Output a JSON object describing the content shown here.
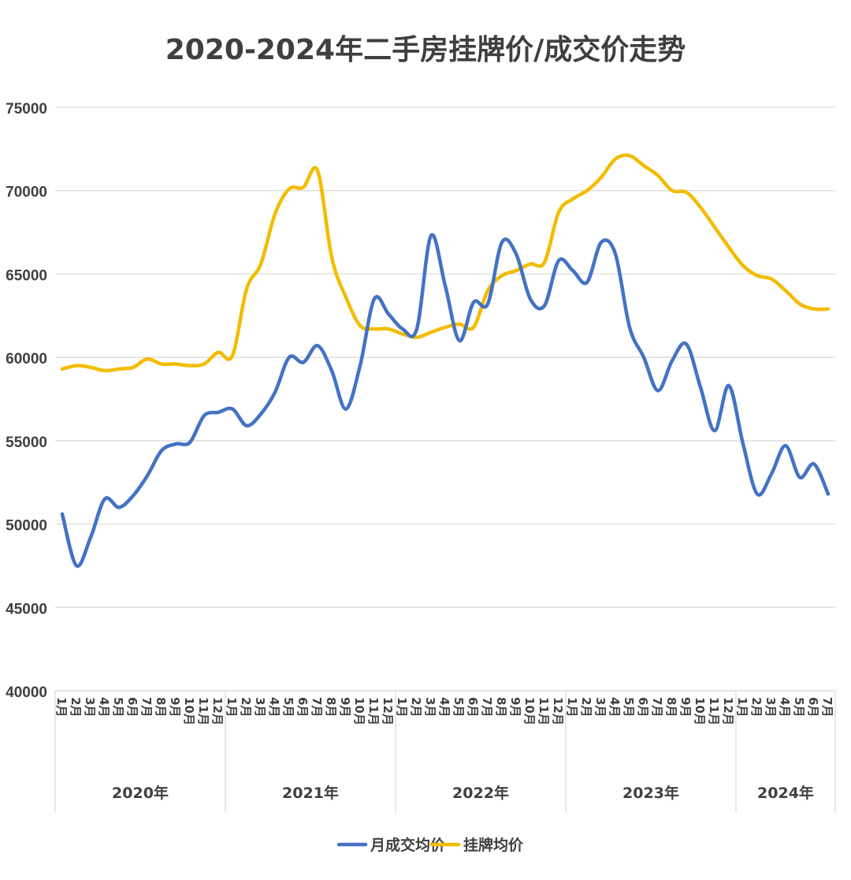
{
  "chart_data": {
    "type": "line",
    "title": "2020-2024年二手房挂牌价/成交价走势",
    "ylim": [
      40000,
      75000
    ],
    "yticks": [
      40000,
      45000,
      50000,
      55000,
      60000,
      65000,
      70000,
      75000
    ],
    "grid": true,
    "legend_position": "bottom",
    "groups": [
      {
        "year": "2020年",
        "months": [
          "1月",
          "2月",
          "3月",
          "4月",
          "5月",
          "6月",
          "7月",
          "8月",
          "9月",
          "10月",
          "11月",
          "12月"
        ]
      },
      {
        "year": "2021年",
        "months": [
          "1月",
          "2月",
          "3月",
          "4月",
          "5月",
          "6月",
          "7月",
          "8月",
          "9月",
          "10月",
          "11月",
          "12月"
        ]
      },
      {
        "year": "2022年",
        "months": [
          "1月",
          "2月",
          "3月",
          "4月",
          "5月",
          "6月",
          "7月",
          "8月",
          "9月",
          "10月",
          "11月",
          "12月"
        ]
      },
      {
        "year": "2023年",
        "months": [
          "1月",
          "2月",
          "3月",
          "4月",
          "5月",
          "6月",
          "7月",
          "8月",
          "9月",
          "10月",
          "11月",
          "12月"
        ]
      },
      {
        "year": "2024年",
        "months": [
          "1月",
          "2月",
          "3月",
          "4月",
          "5月",
          "6月",
          "7月"
        ]
      }
    ],
    "series": [
      {
        "name": "月成交均价",
        "color": "#4472c4",
        "values": [
          50600,
          47500,
          49200,
          51500,
          51000,
          51700,
          52900,
          54400,
          54800,
          54900,
          56500,
          56700,
          56900,
          55900,
          56600,
          57900,
          60000,
          59700,
          60700,
          59200,
          56900,
          59500,
          63500,
          62600,
          61700,
          61700,
          67300,
          64300,
          61000,
          63300,
          63200,
          66900,
          66200,
          63500,
          63100,
          65800,
          65200,
          64500,
          66900,
          66200,
          61800,
          60000,
          58000,
          59800,
          60800,
          58200,
          55600,
          58300,
          54800,
          51800,
          53000,
          54700,
          52800,
          53600,
          51800
        ]
      },
      {
        "name": "挂牌均价",
        "color": "#f2bc00",
        "values": [
          59300,
          59500,
          59400,
          59200,
          59300,
          59400,
          59900,
          59600,
          59600,
          59500,
          59600,
          60300,
          60100,
          64100,
          65600,
          68600,
          70100,
          70200,
          71200,
          66000,
          63600,
          61900,
          61700,
          61700,
          61400,
          61200,
          61500,
          61800,
          62000,
          61800,
          64000,
          64900,
          65200,
          65600,
          65700,
          68700,
          69500,
          70000,
          70800,
          71900,
          72100,
          71500,
          70900,
          70000,
          69900,
          69000,
          67800,
          66600,
          65500,
          64900,
          64700,
          64000,
          63200,
          62900,
          62900
        ]
      }
    ]
  }
}
